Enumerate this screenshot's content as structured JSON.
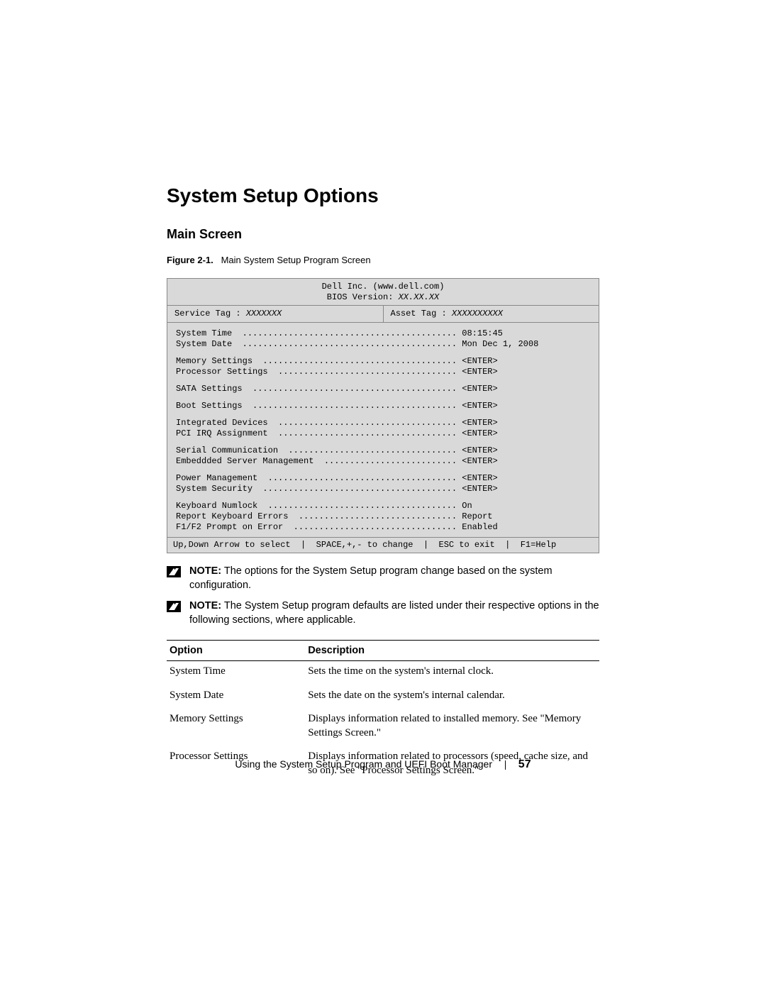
{
  "title": "System Setup Options",
  "subhead": "Main Screen",
  "figure_caption_label": "Figure 2-1.",
  "figure_caption_text": "Main System Setup Program Screen",
  "bios": {
    "company": "Dell Inc. (www.dell.com)",
    "bios_version_label": "BIOS Version:",
    "bios_version_value": "XX.XX.XX",
    "service_tag_label": "Service Tag :",
    "service_tag_value": "XXXXXXX",
    "asset_tag_label": "Asset Tag :",
    "asset_tag_value": "XXXXXXXXXX",
    "groups": [
      [
        {
          "label": "System Time",
          "value": "08:15:45"
        },
        {
          "label": "System Date",
          "value": "Mon Dec 1, 2008"
        }
      ],
      [
        {
          "label": "Memory Settings",
          "value": "<ENTER>"
        },
        {
          "label": "Processor Settings",
          "value": "<ENTER>"
        }
      ],
      [
        {
          "label": "SATA Settings",
          "value": "<ENTER>"
        }
      ],
      [
        {
          "label": "Boot Settings",
          "value": "<ENTER>"
        }
      ],
      [
        {
          "label": "Integrated Devices",
          "value": "<ENTER>"
        },
        {
          "label": "PCI IRQ Assignment",
          "value": "<ENTER>"
        }
      ],
      [
        {
          "label": "Serial Communication",
          "value": "<ENTER>"
        },
        {
          "label": "Embeddded Server Management",
          "value": "<ENTER>"
        }
      ],
      [
        {
          "label": "Power Management",
          "value": "<ENTER>"
        },
        {
          "label": "System Security",
          "value": "<ENTER>"
        }
      ],
      [
        {
          "label": "Keyboard Numlock",
          "value": "On"
        },
        {
          "label": "Report Keyboard Errors",
          "value": "Report"
        },
        {
          "label": "F1/F2 Prompt on Error",
          "value": "Enabled"
        }
      ]
    ],
    "footer": {
      "nav": "Up,Down Arrow to select",
      "change": "SPACE,+,- to change",
      "exit": "ESC to exit",
      "help": "F1=Help"
    }
  },
  "notes": [
    {
      "bold": "NOTE:",
      "text": " The options for the System Setup program change based on the system configuration."
    },
    {
      "bold": "NOTE:",
      "text": " The System Setup program defaults are listed under their respective options in the following sections, where applicable."
    }
  ],
  "table": {
    "headers": [
      "Option",
      "Description"
    ],
    "rows": [
      [
        "System Time",
        "Sets the time on the system's internal clock."
      ],
      [
        "System Date",
        "Sets the date on the system's internal calendar."
      ],
      [
        "Memory Settings",
        "Displays information related to installed memory. See \"Memory Settings Screen.\""
      ],
      [
        "Processor Settings",
        "Displays information related to processors (speed, cache size, and so on). See \"Processor Settings Screen.\""
      ]
    ]
  },
  "footer": {
    "text": "Using the System Setup Program and UEFI Boot Manager",
    "page": "57"
  },
  "colors": {
    "bios_bg": "#d9d9d9",
    "border": "#888888",
    "text": "#000000"
  }
}
